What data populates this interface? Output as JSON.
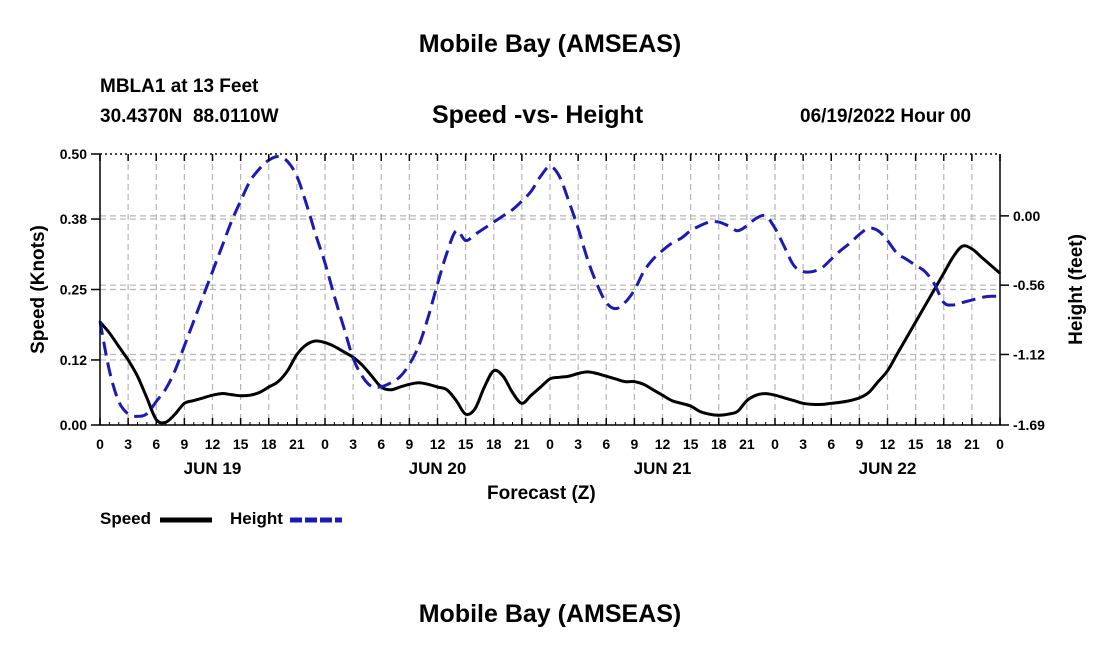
{
  "page_title": "Mobile Bay (AMSEAS)",
  "page_title_repeat": "Mobile Bay (AMSEAS)",
  "station": {
    "name_line": "MBLA1 at 13 Feet",
    "coords_line": "30.4370N  88.0110W",
    "datetime": "06/19/2022 Hour 00"
  },
  "chart_data": {
    "type": "line",
    "title": "Speed -vs- Height",
    "xlabel": "Forecast (Z)",
    "ylabel": "Speed (Knots)",
    "ylabel_right": "Height (feet)",
    "xlim": [
      0,
      96
    ],
    "ylim": [
      0,
      0.5
    ],
    "ylim_right": [
      -1.69,
      0.5
    ],
    "grid": true,
    "x_ticks": [
      0,
      3,
      6,
      9,
      12,
      15,
      18,
      21,
      24,
      27,
      30,
      33,
      36,
      39,
      42,
      45,
      48,
      51,
      54,
      57,
      60,
      63,
      66,
      69,
      72,
      75,
      78,
      81,
      84,
      87,
      90,
      93,
      96
    ],
    "x_tick_labels": [
      "0",
      "3",
      "6",
      "9",
      "12",
      "15",
      "18",
      "21",
      "0",
      "3",
      "6",
      "9",
      "12",
      "15",
      "18",
      "21",
      "0",
      "3",
      "6",
      "9",
      "12",
      "15",
      "18",
      "21",
      "0",
      "3",
      "6",
      "9",
      "12",
      "15",
      "18",
      "21",
      "0"
    ],
    "day_labels": [
      {
        "x": 12,
        "label": "JUN 19"
      },
      {
        "x": 36,
        "label": "JUN 20"
      },
      {
        "x": 60,
        "label": "JUN 21"
      },
      {
        "x": 84,
        "label": "JUN 22"
      }
    ],
    "y_ticks": [
      0.0,
      0.12,
      0.25,
      0.38,
      0.5
    ],
    "y_tick_labels": [
      "0.00",
      "0.12",
      "0.25",
      "0.38",
      "0.50"
    ],
    "y_ticks_right": [
      -1.69,
      -1.12,
      -0.56,
      0.0
    ],
    "y_tick_labels_right": [
      "-1.69",
      "-1.12",
      "-0.56",
      "0.00"
    ],
    "series": [
      {
        "name": "Speed",
        "axis": "left",
        "color": "#000000",
        "style": "solid",
        "x": [
          0,
          1,
          2,
          3,
          4,
          5,
          6,
          7,
          8,
          9,
          10,
          11,
          12,
          13,
          14,
          15,
          16,
          17,
          18,
          19,
          20,
          21,
          22,
          23,
          24,
          25,
          26,
          27,
          28,
          29,
          30,
          31,
          32,
          33,
          34,
          35,
          36,
          37,
          38,
          39,
          40,
          41,
          42,
          43,
          44,
          45,
          46,
          47,
          48,
          49,
          50,
          51,
          52,
          53,
          54,
          55,
          56,
          57,
          58,
          59,
          60,
          61,
          62,
          63,
          64,
          65,
          66,
          67,
          68,
          69,
          70,
          71,
          72,
          73,
          74,
          75,
          76,
          77,
          78,
          79,
          80,
          81,
          82,
          83,
          84,
          85,
          86,
          87,
          88,
          89,
          90,
          91,
          92,
          93,
          94,
          95,
          96
        ],
        "values": [
          0.19,
          0.17,
          0.145,
          0.12,
          0.09,
          0.05,
          0.01,
          0.005,
          0.02,
          0.04,
          0.045,
          0.05,
          0.055,
          0.058,
          0.056,
          0.054,
          0.055,
          0.06,
          0.07,
          0.08,
          0.1,
          0.13,
          0.148,
          0.155,
          0.152,
          0.145,
          0.135,
          0.125,
          0.11,
          0.09,
          0.07,
          0.065,
          0.07,
          0.075,
          0.078,
          0.075,
          0.07,
          0.065,
          0.045,
          0.02,
          0.03,
          0.07,
          0.1,
          0.09,
          0.06,
          0.04,
          0.055,
          0.07,
          0.085,
          0.088,
          0.09,
          0.095,
          0.098,
          0.095,
          0.09,
          0.085,
          0.08,
          0.08,
          0.075,
          0.065,
          0.055,
          0.045,
          0.04,
          0.035,
          0.025,
          0.02,
          0.018,
          0.02,
          0.025,
          0.045,
          0.055,
          0.058,
          0.055,
          0.05,
          0.045,
          0.04,
          0.038,
          0.038,
          0.04,
          0.042,
          0.045,
          0.05,
          0.06,
          0.08,
          0.1,
          0.13,
          0.16,
          0.19,
          0.22,
          0.25,
          0.28,
          0.31,
          0.33,
          0.325,
          0.31,
          0.295,
          0.28
        ]
      },
      {
        "name": "Height",
        "axis": "right",
        "color": "#1a1ab5",
        "style": "dashed",
        "x": [
          0,
          1,
          2,
          3,
          4,
          5,
          6,
          7,
          8,
          9,
          10,
          11,
          12,
          13,
          14,
          15,
          16,
          17,
          18,
          19,
          20,
          21,
          22,
          23,
          24,
          25,
          26,
          27,
          28,
          29,
          30,
          31,
          32,
          33,
          34,
          35,
          36,
          37,
          38,
          39,
          40,
          41,
          42,
          43,
          44,
          45,
          46,
          47,
          48,
          49,
          50,
          51,
          52,
          53,
          54,
          55,
          56,
          57,
          58,
          59,
          60,
          61,
          62,
          63,
          64,
          65,
          66,
          67,
          68,
          69,
          70,
          71,
          72,
          73,
          74,
          75,
          76,
          77,
          78,
          79,
          80,
          81,
          82,
          83,
          84,
          85,
          86,
          87,
          88,
          89,
          90,
          91,
          92,
          93,
          94,
          95,
          96
        ],
        "values": [
          -0.85,
          -1.25,
          -1.5,
          -1.6,
          -1.62,
          -1.6,
          -1.5,
          -1.4,
          -1.25,
          -1.05,
          -0.85,
          -0.65,
          -0.45,
          -0.25,
          -0.05,
          0.12,
          0.28,
          0.38,
          0.45,
          0.48,
          0.44,
          0.32,
          0.1,
          -0.15,
          -0.38,
          -0.65,
          -0.9,
          -1.15,
          -1.3,
          -1.38,
          -1.38,
          -1.35,
          -1.3,
          -1.2,
          -1.05,
          -0.82,
          -0.55,
          -0.3,
          -0.12,
          -0.2,
          -0.15,
          -0.1,
          -0.05,
          0.0,
          0.05,
          0.12,
          0.2,
          0.32,
          0.4,
          0.32,
          0.12,
          -0.1,
          -0.35,
          -0.55,
          -0.7,
          -0.75,
          -0.7,
          -0.6,
          -0.45,
          -0.35,
          -0.28,
          -0.22,
          -0.18,
          -0.12,
          -0.08,
          -0.05,
          -0.05,
          -0.08,
          -0.12,
          -0.08,
          -0.02,
          0.0,
          -0.1,
          -0.25,
          -0.4,
          -0.45,
          -0.45,
          -0.42,
          -0.35,
          -0.28,
          -0.22,
          -0.15,
          -0.1,
          -0.12,
          -0.2,
          -0.3,
          -0.35,
          -0.4,
          -0.45,
          -0.55,
          -0.7,
          -0.72,
          -0.7,
          -0.68,
          -0.66,
          -0.65,
          -0.65
        ]
      }
    ]
  },
  "legend": {
    "speed_label": "Speed",
    "height_label": "Height"
  }
}
